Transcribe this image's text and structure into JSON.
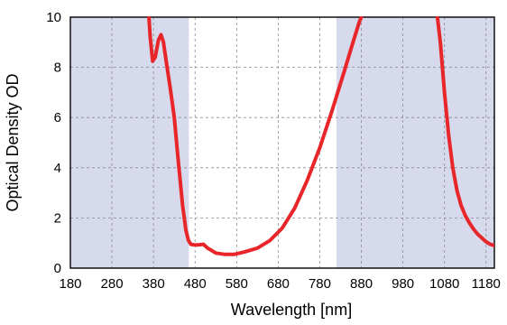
{
  "chart_data": {
    "type": "line",
    "title": "",
    "xlabel": "Wavelength [nm]",
    "ylabel": "Optical Density OD",
    "xlim": [
      180,
      1200
    ],
    "ylim": [
      0,
      10
    ],
    "x_ticks": [
      180,
      280,
      380,
      480,
      580,
      680,
      780,
      880,
      980,
      1080,
      1180
    ],
    "y_ticks": [
      0,
      2,
      4,
      6,
      8,
      10
    ],
    "x_tick_labels": [
      "180",
      "280",
      "380",
      "480",
      "580",
      "680",
      "780",
      "880",
      "980",
      "1080",
      "1180"
    ],
    "y_tick_labels": [
      "0",
      "2",
      "4",
      "6",
      "8",
      "10"
    ],
    "grid": true,
    "legend": "none",
    "blocking_bands_nm": [
      [
        180,
        465
      ],
      [
        820,
        1200
      ]
    ],
    "series": [
      {
        "name": "",
        "color": "#e8262a",
        "x": [
          369,
          372,
          378,
          384,
          392,
          398,
          404,
          410,
          420,
          430,
          440,
          450,
          458,
          464,
          470,
          476,
          482,
          490,
          500,
          510,
          520,
          530,
          550,
          575,
          600,
          630,
          660,
          690,
          720,
          750,
          780,
          810,
          840,
          860,
          875,
          880
        ],
        "y": [
          10,
          9.2,
          8.25,
          8.4,
          9.1,
          9.3,
          9.0,
          8.3,
          7.2,
          6.0,
          4.2,
          2.5,
          1.5,
          1.1,
          0.95,
          0.93,
          0.92,
          0.93,
          0.95,
          0.8,
          0.7,
          0.6,
          0.55,
          0.55,
          0.65,
          0.8,
          1.1,
          1.6,
          2.4,
          3.5,
          4.8,
          6.3,
          7.9,
          9.0,
          9.8,
          10
        ]
      },
      {
        "name": "",
        "color": "#e8262a",
        "x": [
          1063,
          1070,
          1080,
          1090,
          1100,
          1110,
          1120,
          1130,
          1140,
          1150,
          1160,
          1170,
          1180,
          1190,
          1200
        ],
        "y": [
          10,
          9.0,
          7.0,
          5.3,
          4.0,
          3.1,
          2.5,
          2.1,
          1.8,
          1.55,
          1.35,
          1.2,
          1.05,
          0.95,
          0.9
        ]
      }
    ],
    "colors": {
      "band_fill": "#d7d9ec",
      "axis": "#000000",
      "grid": "#8c8c8c"
    }
  }
}
